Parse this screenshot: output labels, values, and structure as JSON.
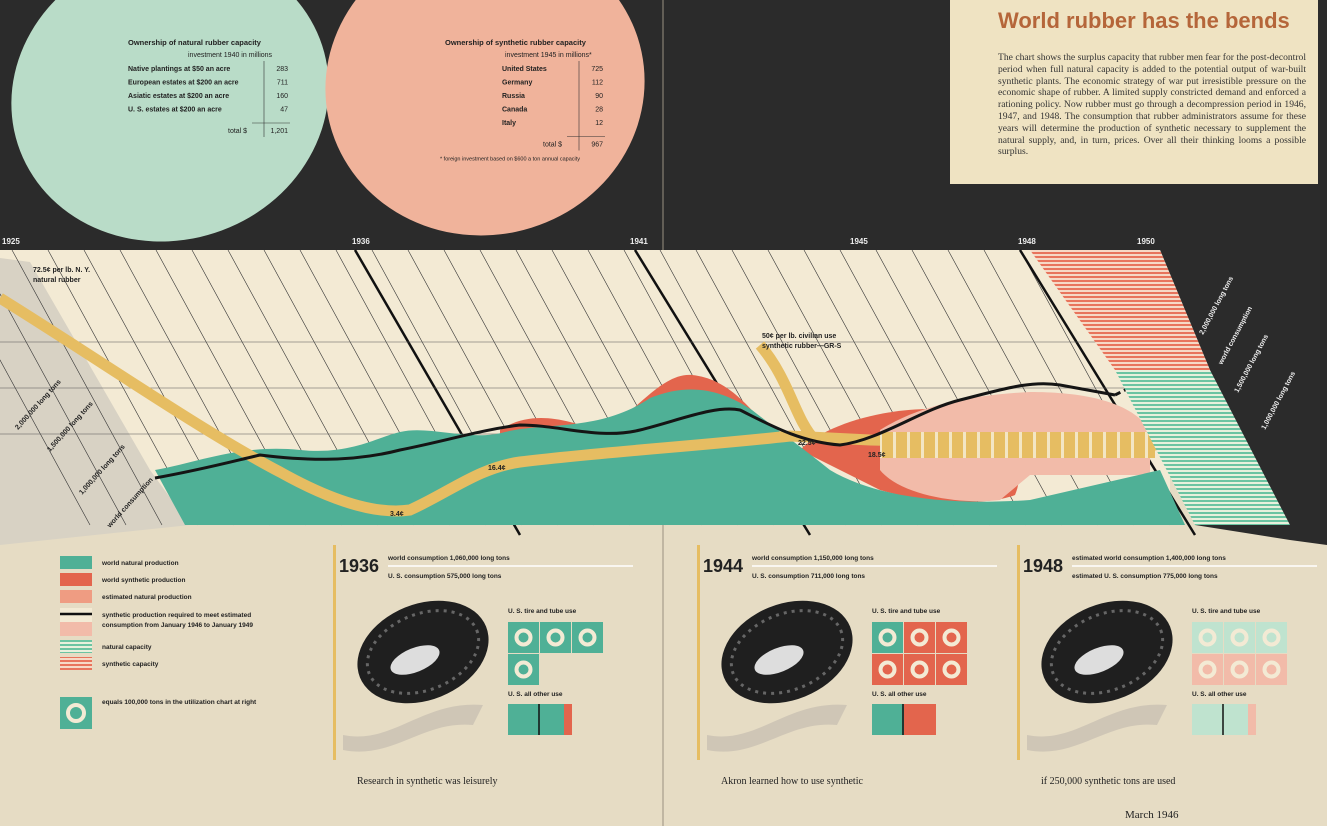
{
  "header": {
    "title": "World rubber has the bends",
    "description": "The chart shows the surplus capacity that rubber men fear for the post-decontrol period when full natural capacity is added to the potential output of war-built synthetic plants. The economic strategy of war put irresistible pressure on the economic shape of rubber. A limited supply constricted demand and enforced a rationing policy. Now rubber must go through a decompression period in 1946, 1947, and 1948. The consumption that rubber administrators assume for these years will determine the production of synthetic necessary to supplement the natural supply, and, in turn, prices. Over all their thinking looms a possible surplus."
  },
  "natural_table": {
    "title": "Ownership of natural rubber capacity",
    "subtitle": "investment 1940 in millions",
    "rows": [
      [
        "Native plantings at $50 an acre",
        "283"
      ],
      [
        "European estates at $200 an acre",
        "711"
      ],
      [
        "Asiatic estates at $200 an acre",
        "160"
      ],
      [
        "U. S. estates at $200 an acre",
        "47"
      ]
    ],
    "total": [
      "total $",
      "1,201"
    ]
  },
  "synthetic_table": {
    "title": "Ownership of synthetic rubber capacity",
    "subtitle": "investment 1945 in millions*",
    "rows": [
      [
        "United States",
        "725"
      ],
      [
        "Germany",
        "112"
      ],
      [
        "Russia",
        "90"
      ],
      [
        "Canada",
        "28"
      ],
      [
        "Italy",
        "12"
      ]
    ],
    "total": [
      "total $",
      "967"
    ],
    "note": "* foreign investment based on $600 a ton annual capacity"
  },
  "timeline": {
    "years": [
      "1925",
      "1936",
      "1941",
      "1945",
      "1948",
      "1950"
    ]
  },
  "chart_labels": {
    "natural_price": [
      "72.5¢ per lb. N. Y.",
      "natural rubber"
    ],
    "left_scale": [
      "2,000,000 long tons",
      "1,500,000 long tons",
      "1,000,000 long tons"
    ],
    "left_axis_title": "world consumption",
    "synthetic_price": [
      "50¢ per lb. civilian use",
      "synthetic rubber—GR-S"
    ],
    "price_points": [
      "3.4¢",
      "16.4¢",
      "22.5¢",
      "18.5¢"
    ],
    "right_scale": [
      "2,000,000 long tons",
      "1,500,000 long tons",
      "1,000,000 long tons"
    ],
    "right_axis_title": "world consumption"
  },
  "legend": {
    "items": [
      [
        "world natural production"
      ],
      [
        "world synthetic production"
      ],
      [
        "estimated natural production"
      ],
      [
        "synthetic production required to meet estimated",
        "consumption from January 1946 to January 1949"
      ],
      [
        "natural capacity"
      ],
      [
        "synthetic capacity"
      ]
    ],
    "icon_note": "equals 100,000 tons in the utilization chart at right"
  },
  "panels": [
    {
      "year": "1936",
      "world": "world consumption 1,060,000 long tons",
      "us": "U. S. consumption 575,000 long tons",
      "tire_label": "U. S. tire and tube use",
      "other_label": "U. S. all other use",
      "caption": "Research in synthetic was leisurely"
    },
    {
      "year": "1944",
      "world": "world consumption 1,150,000 long tons",
      "us": "U. S. consumption 711,000 long tons",
      "tire_label": "U. S. tire and tube use",
      "other_label": "U. S. all other use",
      "caption": "Akron learned how to use synthetic"
    },
    {
      "year": "1948",
      "world": "estimated world consumption 1,400,000 long tons",
      "us": "estimated U. S. consumption 775,000 long tons",
      "tire_label": "U. S. tire and tube use",
      "other_label": "U. S. all other use",
      "caption": "if 250,000 synthetic tons are used"
    }
  ],
  "footer": "March 1946"
}
